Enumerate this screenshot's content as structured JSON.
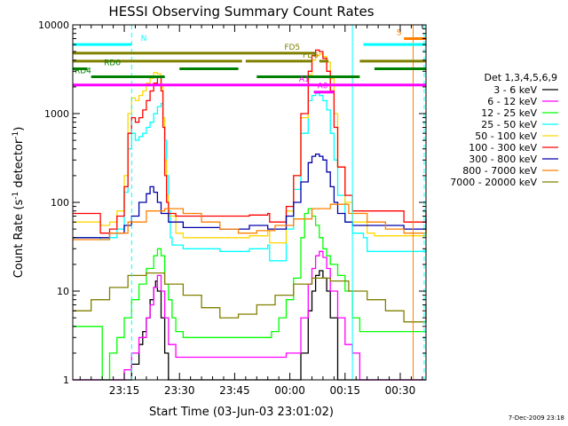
{
  "chart_data": {
    "type": "line",
    "title": "HESSI Observing Summary Count Rates",
    "xlabel": "Start Time (03-Jun-03 23:01:02)",
    "ylabel": "Count Rate (s",
    "ylabel_sup": "-1",
    "ylabel_tail": " detector",
    "ylabel_sup2": "-1",
    "ylabel_end": ")",
    "yscale": "log",
    "ylim": [
      1,
      10000
    ],
    "xlim": [
      0,
      96
    ],
    "xaxis_start": "23:01:02",
    "x_units": "minutes after 23:01:02",
    "x_tick_positions": [
      14,
      29,
      44,
      59,
      74,
      89
    ],
    "x_tick_labels": [
      "23:15",
      "23:30",
      "23:45",
      "00:00",
      "00:15",
      "00:30"
    ],
    "y_ticks": [
      1,
      10,
      100,
      1000,
      10000
    ],
    "y_tick_labels": [
      "1",
      "10",
      "100",
      "1000",
      "10000"
    ],
    "legend_title": "Det 1,3,4,5,6,9",
    "legend_position": "right",
    "footer_date": "7-Dec-2009 23:18",
    "series": [
      {
        "name": "3 - 6 keV",
        "color": "#000000",
        "x": [
          0,
          12,
          14,
          16,
          18,
          19,
          20,
          21,
          22,
          22.5,
          23,
          24,
          25,
          26,
          30,
          60,
          62,
          64,
          65,
          66,
          67,
          68,
          69,
          70,
          72,
          96
        ],
        "y": [
          1,
          1,
          1,
          1.5,
          2.5,
          3.5,
          5,
          8,
          11,
          13,
          10,
          5,
          2,
          1,
          1,
          1,
          2,
          6,
          10,
          15,
          17,
          14,
          10,
          5,
          1,
          1
        ]
      },
      {
        "name": "6 - 12 keV",
        "color": "#ff00ff",
        "x": [
          0,
          12,
          14,
          16,
          18,
          20,
          21,
          22,
          23,
          24,
          25,
          26,
          28,
          55,
          58,
          62,
          64,
          65,
          66,
          67,
          68,
          69,
          70,
          72,
          74,
          76,
          78,
          96
        ],
        "y": [
          1,
          1,
          1.3,
          2,
          3,
          5,
          7,
          11,
          15,
          10,
          5,
          2.5,
          1.8,
          1.8,
          2,
          5,
          12,
          18,
          25,
          28,
          24,
          18,
          10,
          5,
          2.5,
          2,
          1,
          1
        ]
      },
      {
        "name": "12 - 25 keV",
        "color": "#00ff00",
        "x": [
          0,
          7,
          8,
          10,
          12,
          14,
          16,
          18,
          20,
          22,
          23,
          24,
          25,
          26,
          27,
          28,
          30,
          45,
          52,
          54,
          56,
          58,
          60,
          62,
          63,
          64,
          65,
          66,
          67,
          68,
          69,
          70,
          72,
          74,
          76,
          78,
          96
        ],
        "y": [
          4,
          4,
          1,
          2,
          3,
          5,
          8,
          12,
          18,
          25,
          30,
          25,
          12,
          8,
          5,
          3.5,
          3,
          3,
          3,
          3.5,
          5,
          8,
          14,
          40,
          75,
          85,
          70,
          55,
          40,
          30,
          25,
          20,
          15,
          10,
          5,
          3.5,
          3.5
        ]
      },
      {
        "name": "25 - 50 keV",
        "color": "#00ffff",
        "x": [
          0,
          7,
          7.5,
          10,
          12,
          14,
          15,
          16,
          17,
          18,
          19,
          20,
          21,
          22,
          23,
          24,
          24.5,
          25,
          25.5,
          26,
          26.5,
          27,
          30,
          40,
          48,
          53,
          53.5,
          58,
          60,
          62,
          64,
          65,
          66,
          67,
          68,
          69,
          70,
          71,
          72,
          74,
          76,
          79,
          80,
          82,
          96
        ],
        "y": [
          40,
          40,
          38,
          40,
          50,
          130,
          400,
          600,
          500,
          550,
          600,
          700,
          800,
          1000,
          1200,
          1300,
          900,
          500,
          200,
          80,
          40,
          33,
          30,
          28,
          30,
          33,
          22,
          50,
          140,
          600,
          1400,
          1600,
          1700,
          1600,
          1400,
          1100,
          600,
          300,
          120,
          60,
          45,
          40,
          28,
          28,
          30
        ]
      },
      {
        "name": "50 - 100 keV",
        "color": "#ffd700",
        "x": [
          0,
          7,
          7.5,
          10,
          12,
          14,
          15,
          16,
          17,
          18,
          19,
          20,
          21,
          22,
          23,
          24,
          24.5,
          25,
          25.5,
          26,
          28,
          30,
          40,
          48,
          53,
          53.5,
          58,
          60,
          62,
          64,
          65,
          66,
          67,
          68,
          69,
          70,
          71,
          72,
          74,
          76,
          80,
          82,
          96
        ],
        "y": [
          60,
          60,
          55,
          60,
          80,
          200,
          1000,
          1500,
          1400,
          1600,
          1800,
          2200,
          2500,
          2900,
          2800,
          2000,
          900,
          300,
          120,
          70,
          45,
          40,
          40,
          42,
          48,
          35,
          80,
          200,
          900,
          2700,
          4000,
          4500,
          4700,
          4400,
          3800,
          2500,
          1000,
          250,
          100,
          60,
          45,
          42,
          50
        ]
      },
      {
        "name": "100 - 300 keV",
        "color": "#ff0000",
        "x": [
          0,
          7,
          7.5,
          10,
          12,
          14,
          15,
          16,
          17,
          18,
          19,
          20,
          21,
          22,
          23,
          24,
          24.5,
          25,
          25.5,
          26,
          28,
          30,
          40,
          48,
          53,
          53.5,
          58,
          60,
          62,
          64,
          65,
          66,
          67,
          68,
          69,
          70,
          71,
          72,
          74,
          76,
          90,
          96
        ],
        "y": [
          75,
          75,
          45,
          50,
          70,
          150,
          600,
          900,
          800,
          900,
          1100,
          1400,
          1800,
          2200,
          2600,
          1800,
          700,
          200,
          100,
          75,
          70,
          70,
          70,
          72,
          75,
          60,
          90,
          200,
          1000,
          3000,
          4500,
          5200,
          5000,
          4200,
          3000,
          1800,
          700,
          250,
          120,
          80,
          60,
          80
        ]
      },
      {
        "name": "300 - 800 keV",
        "color": "#0000aa",
        "x": [
          0,
          10,
          14,
          16,
          18,
          20,
          21,
          22,
          23,
          24,
          26,
          30,
          40,
          48,
          53,
          58,
          60,
          62,
          64,
          65,
          66,
          67,
          68,
          69,
          70,
          71,
          72,
          74,
          76,
          90,
          96
        ],
        "y": [
          40,
          45,
          55,
          70,
          100,
          125,
          150,
          130,
          100,
          75,
          60,
          52,
          50,
          55,
          50,
          70,
          100,
          170,
          280,
          330,
          350,
          330,
          300,
          220,
          150,
          100,
          75,
          60,
          55,
          50,
          65
        ]
      },
      {
        "name": "800 - 7000 keV",
        "color": "#ff8000",
        "x": [
          0,
          10,
          15,
          20,
          25,
          30,
          35,
          40,
          45,
          50,
          55,
          60,
          65,
          70,
          75,
          80,
          85,
          90,
          96
        ],
        "y": [
          38,
          45,
          60,
          80,
          85,
          75,
          60,
          50,
          45,
          48,
          55,
          65,
          85,
          95,
          75,
          60,
          50,
          45,
          55
        ]
      },
      {
        "name": "7000 - 20000 keV",
        "color": "#808000",
        "x": [
          0,
          5,
          10,
          15,
          20,
          25,
          30,
          35,
          40,
          45,
          50,
          55,
          60,
          65,
          70,
          75,
          80,
          85,
          90,
          96
        ],
        "y": [
          6,
          8,
          11,
          15,
          16,
          12,
          9,
          6.5,
          5,
          5.5,
          7,
          9,
          12,
          14,
          13,
          10,
          8,
          6,
          4.5,
          7
        ]
      }
    ],
    "state_bars": [
      {
        "label": "N",
        "color": "#00ffff",
        "segments": [
          [
            0,
            16
          ],
          [
            79,
            96
          ]
        ],
        "y": 6000,
        "label_x": 18
      },
      {
        "label": "S",
        "color": "#ff8000",
        "segments": [
          [
            90,
            96
          ]
        ],
        "y": 7000,
        "label_x": 87.5
      },
      {
        "label": "FD5",
        "color": "#808000",
        "segments": [
          [
            0,
            66
          ]
        ],
        "y": 4800,
        "label_x": 57
      },
      {
        "label": "FD6",
        "color": "#808000",
        "segments": [
          [
            0,
            46
          ],
          [
            47,
            65
          ],
          [
            67,
            69.5
          ],
          [
            78,
            96
          ]
        ],
        "y": 3900,
        "label_x": 62
      },
      {
        "label": "RD0",
        "color": "#008000",
        "segments": [
          [
            0,
            4
          ],
          [
            29,
            45
          ],
          [
            82,
            96
          ]
        ],
        "y": 3200,
        "label_x": 8
      },
      {
        "label": "RD4",
        "color": "#008000",
        "segments": [
          [
            5,
            25
          ],
          [
            50,
            78
          ]
        ],
        "y": 2600,
        "label_x": 0
      },
      {
        "label": "A1",
        "color": "#ff00ff",
        "segments": [
          [
            0,
            96
          ]
        ],
        "y": 2100,
        "label_x": 61
      },
      {
        "label": "A0",
        "color": "#ff00ff",
        "segments": [
          [
            65.5,
            71
          ]
        ],
        "y": 1750,
        "label_x": 66
      }
    ],
    "vertical_markers": [
      {
        "x": 16,
        "color": "#00ffff",
        "dash": true
      },
      {
        "x": 76,
        "color": "#00ffff",
        "dash": false
      },
      {
        "x": 92.5,
        "color": "#ff8000",
        "dash": false
      },
      {
        "x": 95.5,
        "color": "#00ffff",
        "dash": true
      }
    ]
  }
}
